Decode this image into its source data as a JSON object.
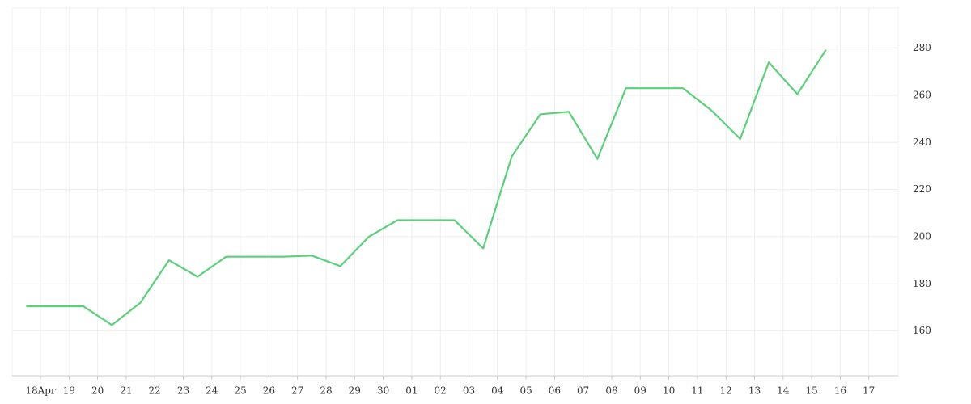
{
  "chart_data": {
    "type": "line",
    "categories": [
      "18Apr",
      "19",
      "20",
      "21",
      "22",
      "23",
      "24",
      "25",
      "26",
      "27",
      "28",
      "29",
      "30",
      "01",
      "02",
      "03",
      "04",
      "05",
      "06",
      "07",
      "08",
      "09",
      "10",
      "11",
      "12",
      "13",
      "14",
      "15",
      "16",
      "17"
    ],
    "series": [
      {
        "color": "#5ad07a",
        "values": [
          170.5,
          170.5,
          170.5,
          162.5,
          172,
          190,
          183,
          191.5,
          191.5,
          191.5,
          192,
          187.5,
          200,
          207,
          207,
          207,
          195,
          234,
          252,
          253,
          233,
          263,
          263,
          263,
          253.5,
          241.5,
          274,
          260.5,
          279.3,
          null
        ]
      }
    ],
    "ylim": [
      141,
      297
    ],
    "yticks": [
      160,
      180,
      200,
      220,
      240,
      260,
      280
    ],
    "grid": true
  }
}
